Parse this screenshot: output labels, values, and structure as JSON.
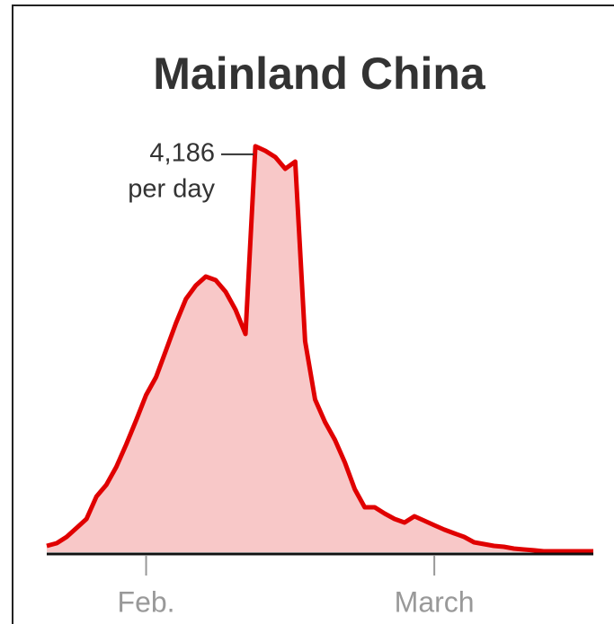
{
  "chart_data": {
    "type": "area",
    "title": "Mainland China",
    "categories": [
      null,
      null,
      null,
      null,
      null,
      null,
      null,
      null,
      null,
      null,
      "Feb.",
      null,
      null,
      null,
      null,
      null,
      null,
      null,
      null,
      null,
      null,
      null,
      null,
      null,
      null,
      null,
      null,
      null,
      null,
      null,
      null,
      null,
      null,
      null,
      null,
      null,
      null,
      null,
      null,
      "March",
      null,
      null,
      null,
      null,
      null,
      null,
      null,
      null,
      null,
      null,
      null,
      null,
      null,
      null,
      null,
      null
    ],
    "values": [
      65,
      93,
      157,
      250,
      343,
      574,
      694,
      880,
      1111,
      1361,
      1620,
      1806,
      2083,
      2361,
      2611,
      2750,
      2843,
      2806,
      2685,
      2500,
      2250,
      4186,
      4139,
      4074,
      3954,
      4028,
      2176,
      1574,
      1343,
      1157,
      926,
      648,
      463,
      463,
      398,
      343,
      306,
      370,
      324,
      278,
      232,
      194,
      157,
      102,
      83,
      65,
      56,
      37,
      28,
      19,
      9,
      9,
      9,
      9,
      9,
      9
    ],
    "value_labels": [
      null,
      null,
      null,
      null,
      null,
      null,
      null,
      null,
      null,
      null,
      null,
      null,
      null,
      null,
      null,
      null,
      null,
      null,
      null,
      null,
      null,
      "4,186",
      null,
      null,
      null,
      null,
      null,
      null,
      null,
      null,
      null,
      null,
      null,
      null,
      null,
      null,
      null,
      null,
      null,
      null,
      null,
      null,
      null,
      null,
      null,
      null,
      null,
      null,
      null,
      null,
      null,
      null,
      null,
      null,
      null,
      null
    ],
    "annotation": "per day",
    "color": "#e00000",
    "fill": "#f8c8c8",
    "ylim": [
      0,
      4500
    ]
  }
}
